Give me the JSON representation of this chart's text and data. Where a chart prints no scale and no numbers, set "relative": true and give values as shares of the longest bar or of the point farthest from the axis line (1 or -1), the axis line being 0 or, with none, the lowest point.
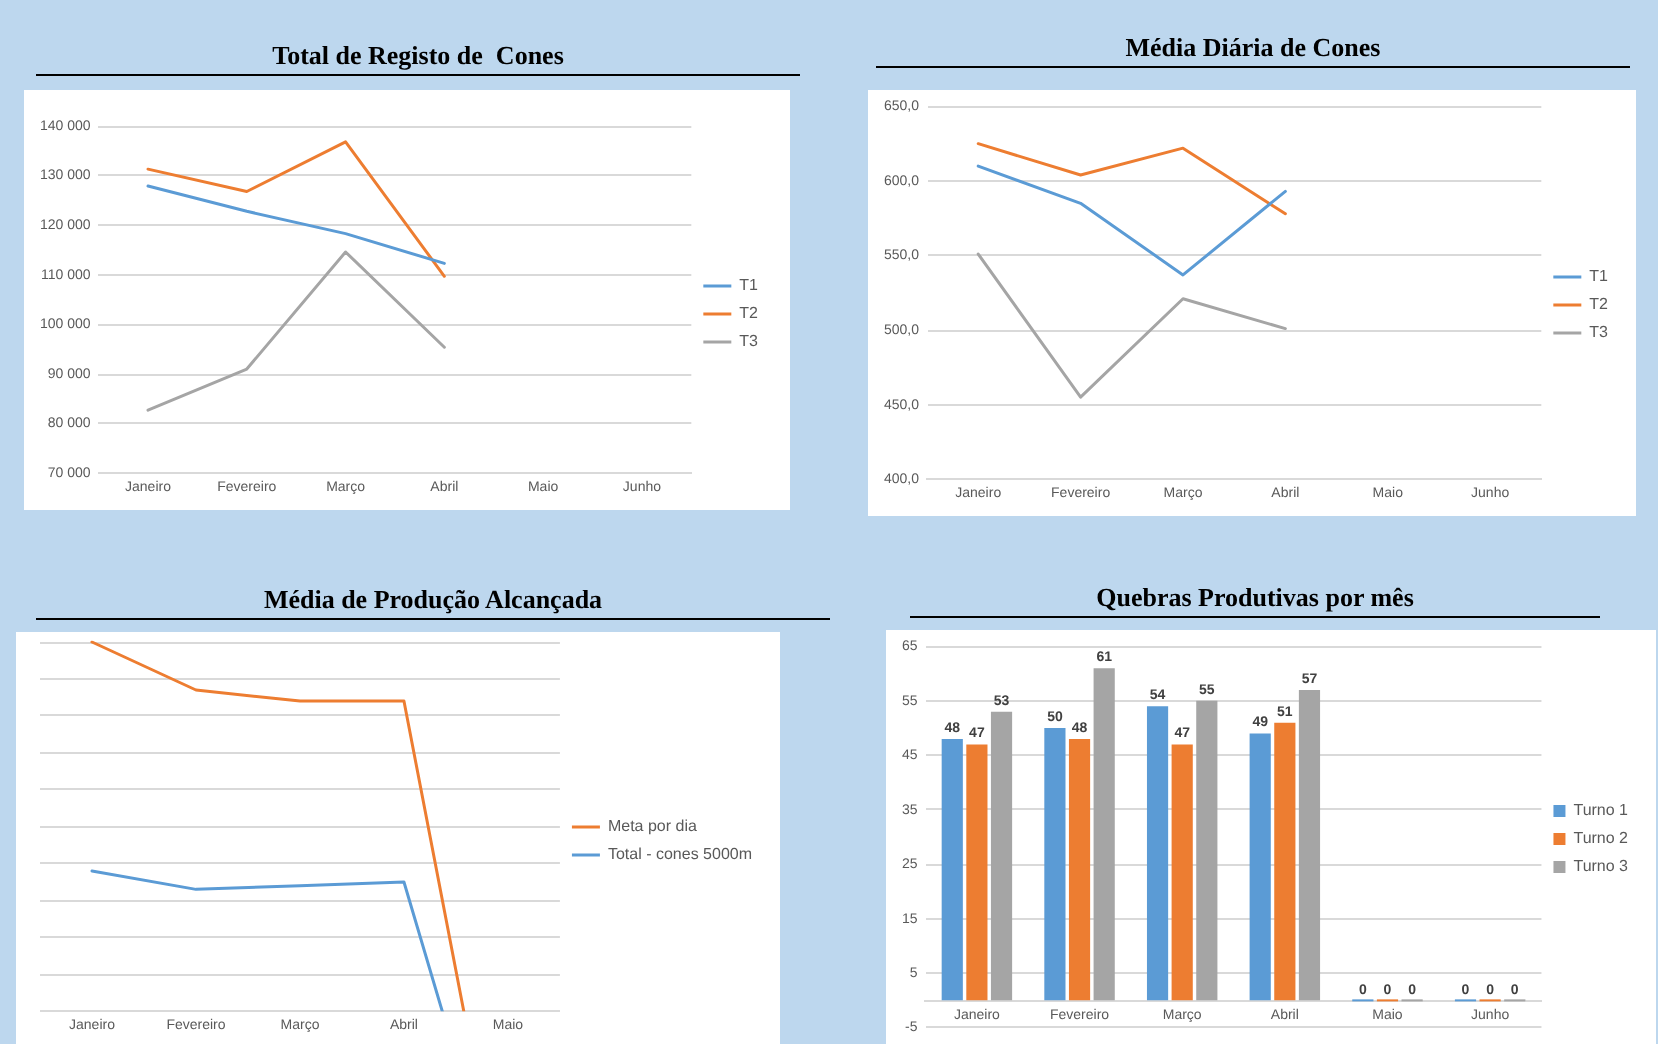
{
  "chart_data": [
    {
      "type": "line",
      "title": "Total de Registo de  Cones",
      "categories": [
        "Janeiro",
        "Fevereiro",
        "Março",
        "Abril",
        "Maio",
        "Junho"
      ],
      "series": [
        {
          "name": "T1",
          "color": "#5b9bd5",
          "values": [
            127900,
            122800,
            118300,
            112300,
            null,
            null
          ]
        },
        {
          "name": "T2",
          "color": "#ed7d31",
          "values": [
            131300,
            126800,
            136800,
            109700,
            null,
            null
          ]
        },
        {
          "name": "T3",
          "color": "#a5a5a5",
          "values": [
            82700,
            91000,
            114600,
            95400,
            null,
            null
          ]
        }
      ],
      "ylim": [
        70000,
        140000
      ],
      "yticks": [
        {
          "value": 70000,
          "label": "70 000"
        },
        {
          "value": 80000,
          "label": "80 000"
        },
        {
          "value": 90000,
          "label": "90 000"
        },
        {
          "value": 100000,
          "label": "100 000"
        },
        {
          "value": 110000,
          "label": "110 000"
        },
        {
          "value": 120000,
          "label": "120 000"
        },
        {
          "value": 130000,
          "label": "130 000"
        },
        {
          "value": 140000,
          "label": "140 000"
        }
      ],
      "grid": "y",
      "legend": "right"
    },
    {
      "type": "line",
      "title": "Média Diária de Cones",
      "categories": [
        "Janeiro",
        "Fevereiro",
        "Março",
        "Abril",
        "Maio",
        "Junho"
      ],
      "series": [
        {
          "name": "T1",
          "color": "#5b9bd5",
          "values": [
            610,
            585,
            537,
            593,
            null,
            null
          ]
        },
        {
          "name": "T2",
          "color": "#ed7d31",
          "values": [
            625,
            604,
            622,
            578,
            null,
            null
          ]
        },
        {
          "name": "T3",
          "color": "#a5a5a5",
          "values": [
            551,
            455,
            521,
            501,
            null,
            null
          ]
        }
      ],
      "ylim": [
        400,
        650
      ],
      "yticks": [
        {
          "value": 400,
          "label": "400,0"
        },
        {
          "value": 450,
          "label": "450,0"
        },
        {
          "value": 500,
          "label": "500,0"
        },
        {
          "value": 550,
          "label": "550,0"
        },
        {
          "value": 600,
          "label": "600,0"
        },
        {
          "value": 650,
          "label": "650,0"
        }
      ],
      "grid": "y",
      "legend": "right"
    },
    {
      "type": "line",
      "title": "Média de Produção Alcançada",
      "categories": [
        "Janeiro",
        "Fevereiro",
        "Março",
        "Abril",
        "Maio"
      ],
      "relative": true,
      "series": [
        {
          "name": "Meta por dia",
          "color": "#ed7d31",
          "values": [
            1,
            0.87,
            0.84,
            0.84,
            -0.62
          ]
        },
        {
          "name": "Total - cones 5000m",
          "color": "#5b9bd5",
          "values": [
            0.38,
            0.33,
            0.34,
            0.35,
            -0.6
          ]
        }
      ],
      "grid": "y",
      "legend": "right"
    },
    {
      "type": "bar",
      "title": "Quebras Produtivas por mês",
      "categories": [
        "Janeiro",
        "Fevereiro",
        "Março",
        "Abril",
        "Maio",
        "Junho"
      ],
      "series": [
        {
          "name": "Turno 1",
          "color": "#5b9bd5",
          "values": [
            48,
            50,
            54,
            49,
            0,
            0
          ]
        },
        {
          "name": "Turno 2",
          "color": "#ed7d31",
          "values": [
            47,
            48,
            47,
            51,
            0,
            0
          ]
        },
        {
          "name": "Turno 3",
          "color": "#a5a5a5",
          "values": [
            53,
            61,
            55,
            57,
            0,
            0
          ]
        }
      ],
      "ylim": [
        -5,
        65
      ],
      "yticks": [
        -5,
        5,
        15,
        25,
        35,
        45,
        55,
        65
      ],
      "grid": "y",
      "legend": "right",
      "data_labels": true
    }
  ]
}
